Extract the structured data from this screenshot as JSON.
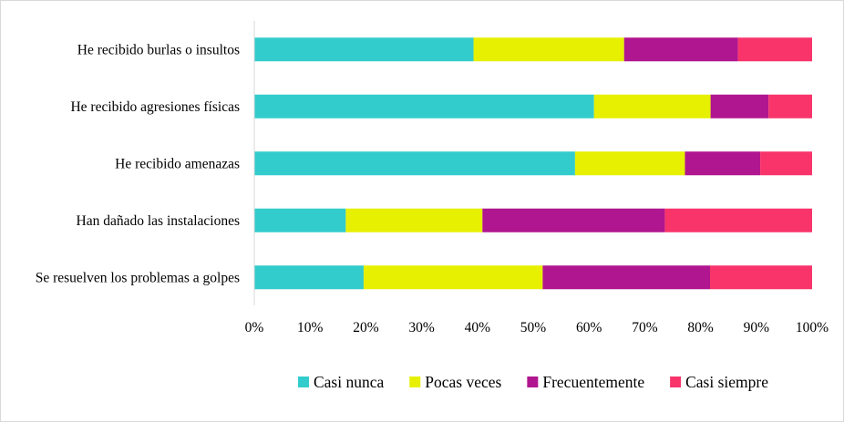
{
  "chart_data": {
    "type": "bar",
    "orientation": "horizontal",
    "stacked": "percent",
    "categories": [
      "He recibido burlas o insultos",
      "He recibido agresiones físicas",
      "He recibido amenazas",
      "Han dañado las instalaciones",
      "Se resuelven los problemas a golpes"
    ],
    "series": [
      {
        "name": "Casi nunca",
        "color": "#33cccc",
        "values": [
          39.3,
          60.9,
          57.5,
          16.4,
          19.6
        ]
      },
      {
        "name": "Pocas veces",
        "color": "#e6f000",
        "values": [
          27.0,
          20.9,
          19.7,
          24.5,
          32.1
        ]
      },
      {
        "name": "Frecuentemente",
        "color": "#b0168f",
        "values": [
          20.4,
          10.4,
          13.5,
          32.7,
          30.0
        ]
      },
      {
        "name": "Casi siempre",
        "color": "#f8346b",
        "values": [
          13.3,
          7.8,
          9.3,
          26.4,
          18.3
        ]
      }
    ],
    "xlim": [
      0,
      100
    ],
    "xticks": [
      "0%",
      "10%",
      "20%",
      "30%",
      "40%",
      "50%",
      "60%",
      "70%",
      "80%",
      "90%",
      "100%"
    ],
    "grid": false,
    "legend_position": "bottom"
  }
}
